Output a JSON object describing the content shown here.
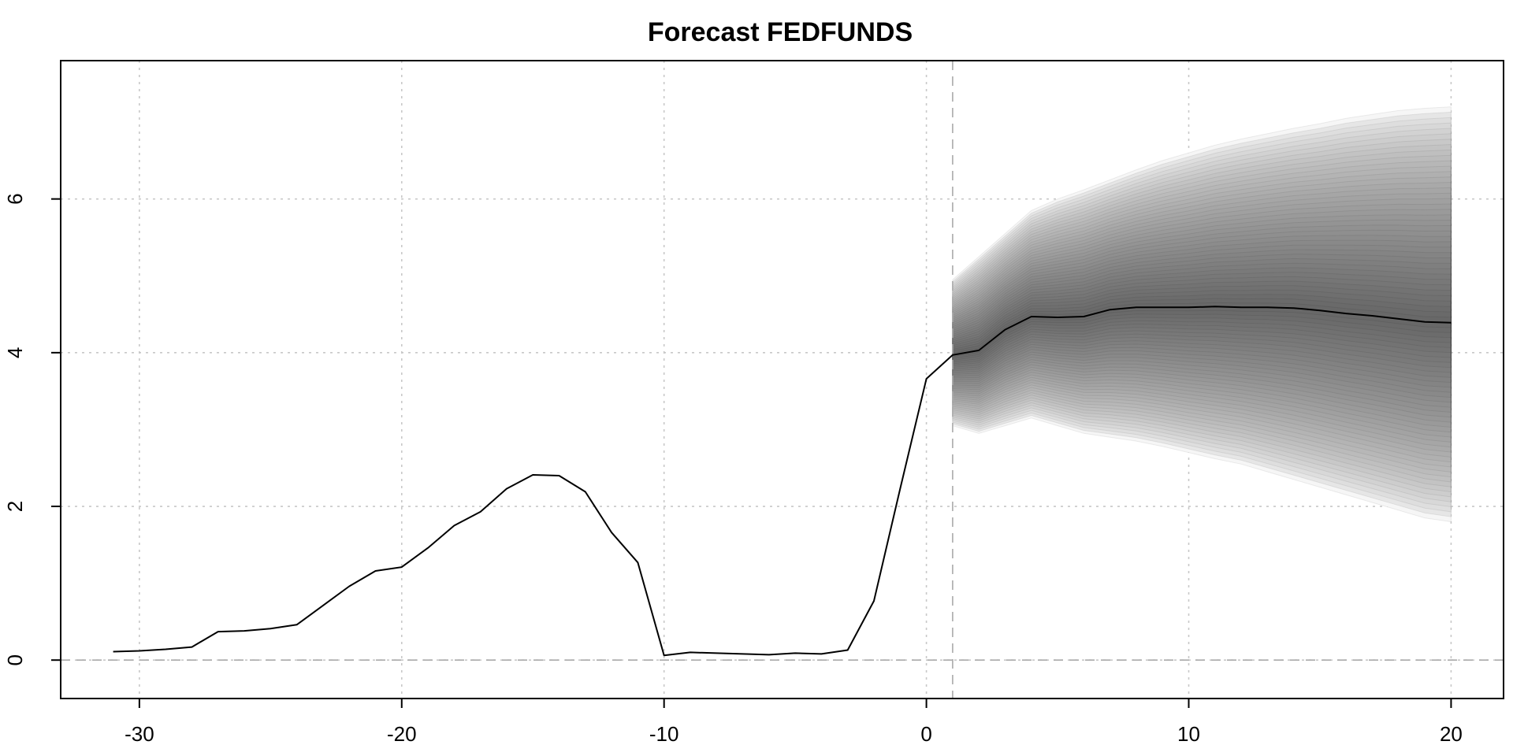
{
  "chart_data": {
    "type": "line",
    "title": "Forecast FEDFUNDS",
    "xlabel": "",
    "ylabel": "",
    "xlim": [
      -33,
      22
    ],
    "ylim": [
      -0.5,
      7.8
    ],
    "x_ticks": [
      -30,
      -20,
      -10,
      0,
      10,
      20
    ],
    "y_ticks": [
      0,
      2,
      4,
      6
    ],
    "grid": true,
    "reference_lines": {
      "horizontal": 0,
      "vertical": 1
    },
    "colors": {
      "line": "#000000",
      "fan_core": "#686868",
      "fan_edge": "#f6f6f6",
      "grid": "#c8c8c8"
    },
    "series": [
      {
        "x": [
          -31,
          -30,
          -29,
          -28,
          -27,
          -26,
          -25,
          -24,
          -23,
          -22,
          -21,
          -20,
          -19,
          -18,
          -17,
          -16,
          -15,
          -14,
          -13,
          -12,
          -11,
          -10,
          -9,
          -8,
          -7,
          -6,
          -5,
          -4,
          -3,
          -2,
          -1,
          0,
          1
        ],
        "values": [
          0.11,
          0.12,
          0.14,
          0.17,
          0.37,
          0.38,
          0.41,
          0.46,
          0.71,
          0.96,
          1.16,
          1.21,
          1.46,
          1.75,
          1.93,
          2.23,
          2.41,
          2.4,
          2.19,
          1.66,
          1.27,
          0.06,
          0.1,
          0.09,
          0.08,
          0.07,
          0.09,
          0.08,
          0.13,
          0.77,
          2.23,
          3.66,
          3.97
        ]
      },
      {
        "x": [
          1,
          2,
          3,
          4,
          5,
          6,
          7,
          8,
          9,
          10,
          11,
          12,
          13,
          14,
          15,
          16,
          17,
          18,
          19,
          20
        ],
        "values": [
          3.97,
          4.03,
          4.3,
          4.47,
          4.46,
          4.47,
          4.56,
          4.59,
          4.59,
          4.59,
          4.6,
          4.59,
          4.59,
          4.58,
          4.55,
          4.51,
          4.48,
          4.44,
          4.4,
          4.39
        ]
      }
    ],
    "fan": {
      "x": [
        1,
        2,
        3,
        4,
        5,
        6,
        7,
        8,
        9,
        10,
        11,
        12,
        13,
        14,
        15,
        16,
        17,
        18,
        19,
        20
      ],
      "upper": [
        4.95,
        5.25,
        5.55,
        5.85,
        6.0,
        6.12,
        6.25,
        6.38,
        6.5,
        6.6,
        6.7,
        6.78,
        6.85,
        6.92,
        6.98,
        7.05,
        7.1,
        7.15,
        7.18,
        7.2
      ],
      "lower": [
        3.05,
        2.95,
        3.05,
        3.15,
        3.05,
        2.95,
        2.9,
        2.85,
        2.78,
        2.7,
        2.62,
        2.55,
        2.45,
        2.35,
        2.25,
        2.15,
        2.05,
        1.95,
        1.85,
        1.8
      ]
    }
  }
}
